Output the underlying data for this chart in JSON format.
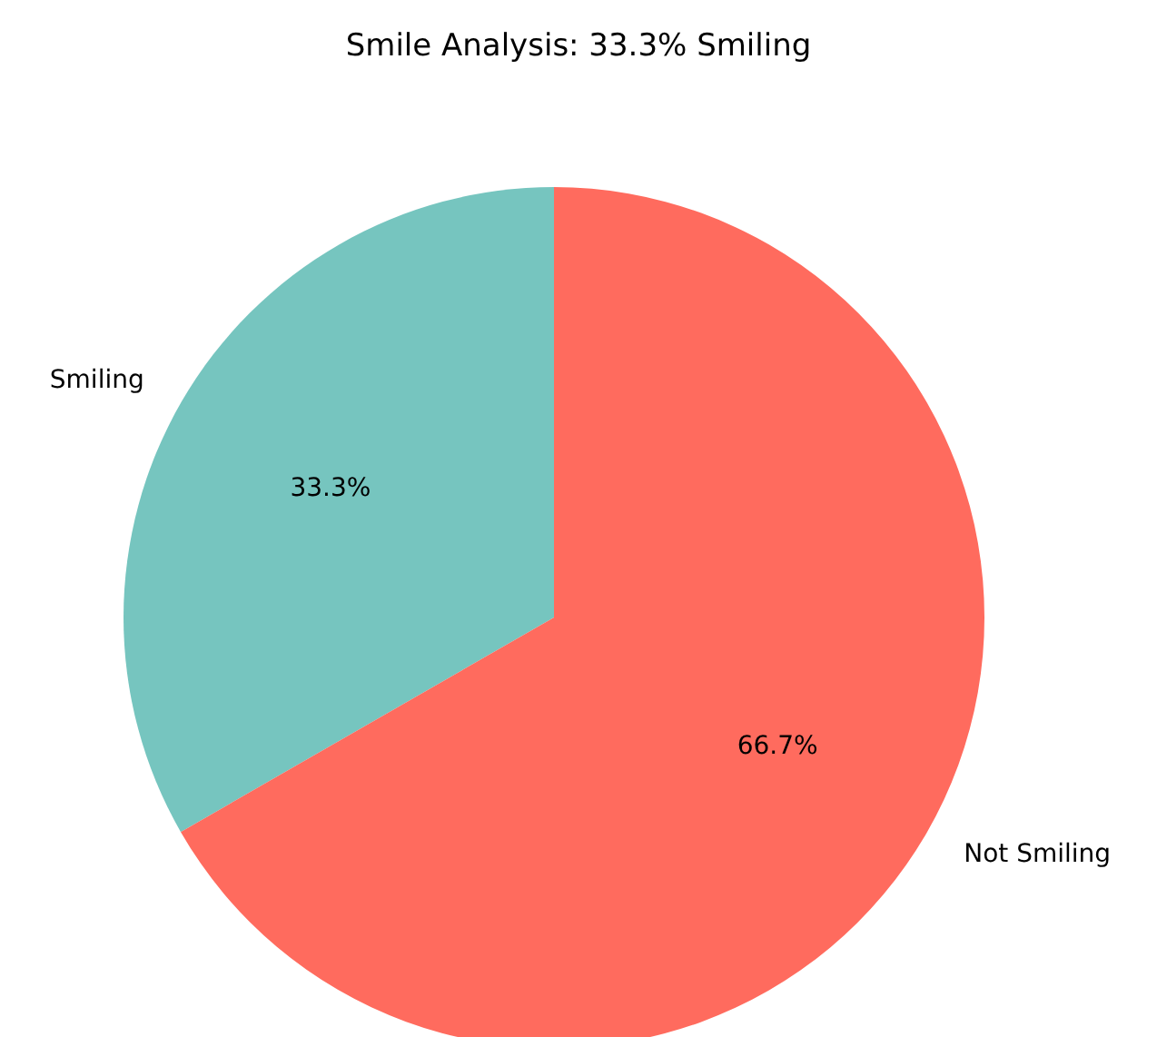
{
  "chart_data": {
    "type": "pie",
    "title": "Smile Analysis: 33.3% Smiling",
    "categories": [
      "Smiling",
      "Not Smiling"
    ],
    "values": [
      33.3,
      66.7
    ],
    "colors": [
      "#76c5bf",
      "#ff6b5e"
    ],
    "value_labels": [
      "33.3%",
      "66.7%"
    ]
  }
}
